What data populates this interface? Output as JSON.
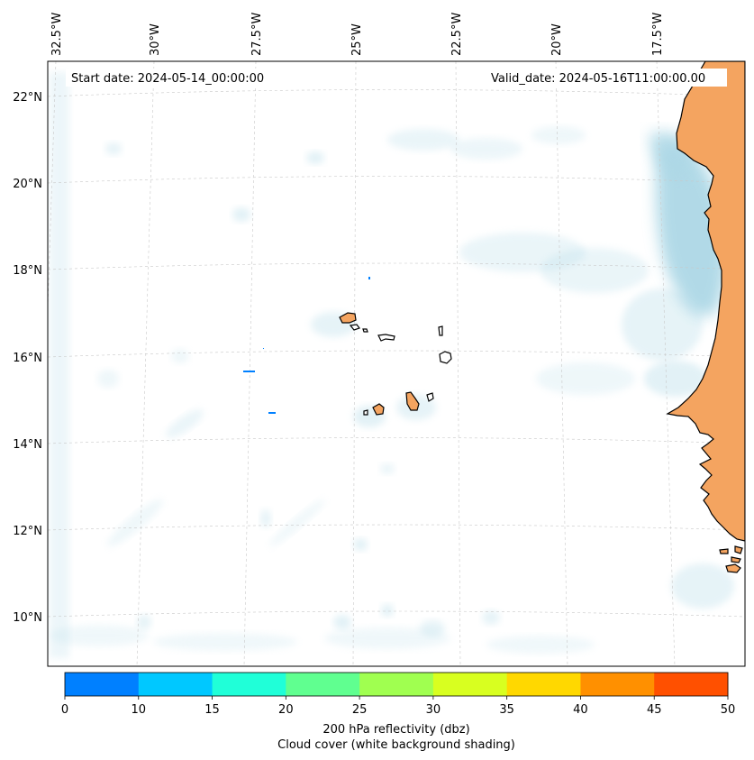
{
  "map": {
    "start_date": "Start date: 2024-05-14_00:00:00",
    "valid_date": "Valid_date: 2024-05-16T11:00:00.00",
    "lon_labels": [
      "32.5°W",
      "30°W",
      "27.5°W",
      "25°W",
      "22.5°W",
      "20°W",
      "17.5°W"
    ],
    "lat_labels": [
      "22°N",
      "20°N",
      "18°N",
      "16°N",
      "14°N",
      "12°N",
      "10°N"
    ],
    "land_color": "#f4a460",
    "cloud_color": "#add8e6"
  },
  "colorbar": {
    "ticks": [
      "0",
      "10",
      "15",
      "20",
      "25",
      "30",
      "35",
      "40",
      "45",
      "50"
    ],
    "colors": [
      "#0080ff",
      "#00c8ff",
      "#20ffd8",
      "#60ff90",
      "#a0ff50",
      "#d8ff20",
      "#ffd800",
      "#ff9000",
      "#ff5000"
    ],
    "label_line1": "200 hPa reflectivity (dbz)",
    "label_line2": "Cloud cover (white background shading)"
  }
}
